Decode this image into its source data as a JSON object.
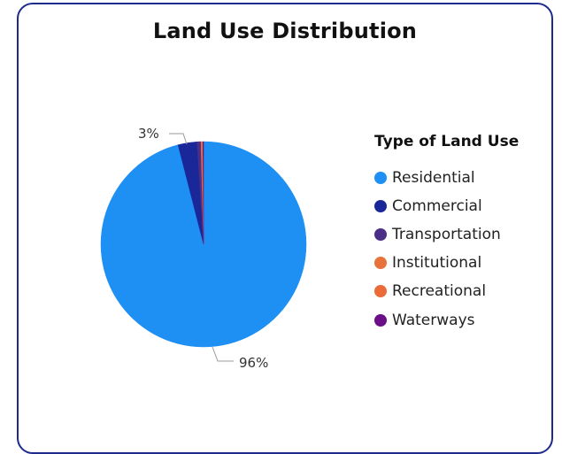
{
  "chart_data": {
    "type": "pie",
    "title": "Land Use Distribution",
    "legend_title": "Type of Land Use",
    "legend_position": "right",
    "categories": [
      "Residential",
      "Commercial",
      "Transportation",
      "Institutional",
      "Recreational",
      "Waterways"
    ],
    "values": [
      96,
      3,
      0.6,
      0.15,
      0.15,
      0.1
    ],
    "colors": [
      "#1e8ff3",
      "#1a2799",
      "#4b2f86",
      "#e8733a",
      "#ea6b38",
      "#6a0f87"
    ],
    "data_labels": [
      {
        "category": "Residential",
        "text": "96%"
      },
      {
        "category": "Commercial",
        "text": "3%"
      }
    ]
  }
}
